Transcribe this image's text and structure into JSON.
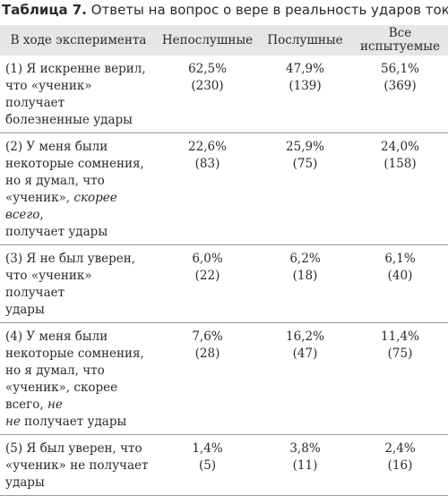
{
  "caption": {
    "label": "Таблица 7.",
    "text": " Ответы на вопрос о вере в реальность ударов током"
  },
  "header": {
    "col1": "В ходе эксперимента",
    "col2": "Непослушные",
    "col3": "Послушные",
    "col4_line1": "Все",
    "col4_line2": "испытуемые"
  },
  "rows": [
    {
      "lines": [
        [
          {
            "t": "(1) Я искренне верил,",
            "i": false
          }
        ],
        [
          {
            "t": "что «ученик» получает",
            "i": false
          }
        ],
        [
          {
            "t": "болезненные удары",
            "i": false
          }
        ]
      ],
      "disobedient": {
        "pct": "62,5%",
        "cnt": "(230)"
      },
      "obedient": {
        "pct": "47,9%",
        "cnt": "(139)"
      },
      "all": {
        "pct": "56,1%",
        "cnt": "(369)"
      }
    },
    {
      "lines": [
        [
          {
            "t": "(2) У меня были",
            "i": false
          }
        ],
        [
          {
            "t": "некоторые сомнения,",
            "i": false
          }
        ],
        [
          {
            "t": "но я думал, что",
            "i": false
          }
        ],
        [
          {
            "t": "«ученик», ",
            "i": false
          },
          {
            "t": "скорее всего",
            "i": true
          },
          {
            "t": ",",
            "i": false
          }
        ],
        [
          {
            "t": "получает удары",
            "i": false
          }
        ]
      ],
      "disobedient": {
        "pct": "22,6%",
        "cnt": "(83)"
      },
      "obedient": {
        "pct": "25,9%",
        "cnt": "(75)"
      },
      "all": {
        "pct": "24,0%",
        "cnt": "(158)"
      }
    },
    {
      "lines": [
        [
          {
            "t": "(3) Я не был уверен,",
            "i": false
          }
        ],
        [
          {
            "t": "что «ученик» получает",
            "i": false
          }
        ],
        [
          {
            "t": "удары",
            "i": false
          }
        ]
      ],
      "disobedient": {
        "pct": "6,0%",
        "cnt": "(22)"
      },
      "obedient": {
        "pct": "6,2%",
        "cnt": "(18)"
      },
      "all": {
        "pct": "6,1%",
        "cnt": "(40)"
      }
    },
    {
      "lines": [
        [
          {
            "t": "(4) У меня были",
            "i": false
          }
        ],
        [
          {
            "t": "некоторые сомнения,",
            "i": false
          }
        ],
        [
          {
            "t": "но я думал, что",
            "i": false
          }
        ],
        [
          {
            "t": "«ученик», скорее всего, ",
            "i": false
          },
          {
            "t": "не",
            "i": true
          }
        ],
        [
          {
            "t": "не",
            "i": true
          },
          {
            "t": " получает удары",
            "i": false
          }
        ]
      ],
      "disobedient": {
        "pct": "7,6%",
        "cnt": "(28)"
      },
      "obedient": {
        "pct": "16,2%",
        "cnt": "(47)"
      },
      "all": {
        "pct": "11,4%",
        "cnt": "(75)"
      }
    },
    {
      "lines": [
        [
          {
            "t": "(5) Я был уверен, что",
            "i": false
          }
        ],
        [
          {
            "t": "«ученик» не получает",
            "i": false
          }
        ],
        [
          {
            "t": "удары",
            "i": false
          }
        ]
      ],
      "disobedient": {
        "pct": "1,4%",
        "cnt": "(5)"
      },
      "obedient": {
        "pct": "3,8%",
        "cnt": "(11)"
      },
      "all": {
        "pct": "2,4%",
        "cnt": "(16)"
      }
    }
  ]
}
